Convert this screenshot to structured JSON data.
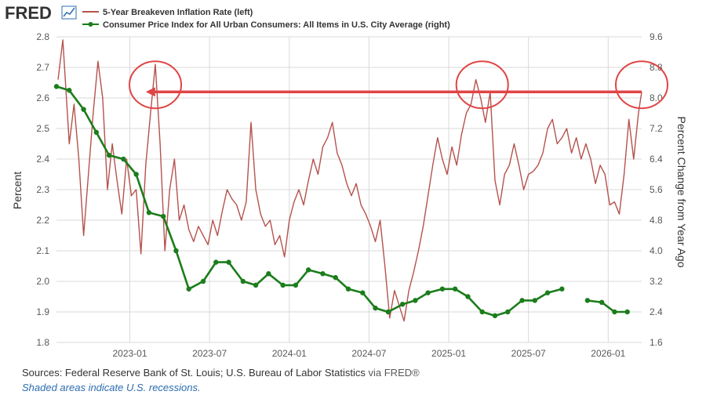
{
  "header": {
    "logo_text": "FRED",
    "logo_icon": "chart-line-icon",
    "accent": "#2c6cb0"
  },
  "footer": {
    "sources": "Sources: Federal Reserve Bank of St. Louis; U.S. Bureau of Labor Statistics",
    "via": "via FRED®",
    "recession_note": "Shaded areas indicate U.S. recessions."
  },
  "chart_data": {
    "type": "line",
    "title": "",
    "xlabel": "",
    "ylabel_left": "Percent",
    "ylabel_right": "Percent Change from Year Ago",
    "x_ticks": [
      "2023-01",
      "2023-07",
      "2024-01",
      "2024-07",
      "2025-01",
      "2025-07",
      "2026-01"
    ],
    "y_left_ticks": [
      "1.8",
      "1.9",
      "2.0",
      "2.1",
      "2.2",
      "2.3",
      "2.4",
      "2.5",
      "2.6",
      "2.7",
      "2.8"
    ],
    "y_right_ticks": [
      "1.6",
      "2.4",
      "3.2",
      "4.0",
      "4.8",
      "5.6",
      "6.4",
      "7.2",
      "8.0",
      "8.8",
      "9.6"
    ],
    "ylim_left": [
      1.8,
      2.8
    ],
    "ylim_right": [
      1.6,
      9.6
    ],
    "xlim": [
      2022.54,
      2026.21
    ],
    "grid": true,
    "legend_position": "top-left",
    "series": [
      {
        "name": "5-Year Breakeven Inflation Rate (left)",
        "axis": "left",
        "color": "#b5524d",
        "points": [
          [
            2022.55,
            2.66
          ],
          [
            2022.58,
            2.79
          ],
          [
            2022.62,
            2.45
          ],
          [
            2022.65,
            2.58
          ],
          [
            2022.68,
            2.4
          ],
          [
            2022.71,
            2.15
          ],
          [
            2022.74,
            2.35
          ],
          [
            2022.77,
            2.55
          ],
          [
            2022.8,
            2.72
          ],
          [
            2022.83,
            2.6
          ],
          [
            2022.86,
            2.3
          ],
          [
            2022.89,
            2.45
          ],
          [
            2022.92,
            2.33
          ],
          [
            2022.95,
            2.22
          ],
          [
            2022.98,
            2.4
          ],
          [
            2023.01,
            2.28
          ],
          [
            2023.04,
            2.3
          ],
          [
            2023.07,
            2.09
          ],
          [
            2023.1,
            2.38
          ],
          [
            2023.13,
            2.55
          ],
          [
            2023.16,
            2.71
          ],
          [
            2023.19,
            2.45
          ],
          [
            2023.22,
            2.1
          ],
          [
            2023.25,
            2.3
          ],
          [
            2023.28,
            2.4
          ],
          [
            2023.31,
            2.2
          ],
          [
            2023.34,
            2.25
          ],
          [
            2023.37,
            2.17
          ],
          [
            2023.4,
            2.13
          ],
          [
            2023.43,
            2.18
          ],
          [
            2023.46,
            2.15
          ],
          [
            2023.49,
            2.12
          ],
          [
            2023.52,
            2.2
          ],
          [
            2023.55,
            2.15
          ],
          [
            2023.58,
            2.23
          ],
          [
            2023.61,
            2.3
          ],
          [
            2023.64,
            2.27
          ],
          [
            2023.67,
            2.25
          ],
          [
            2023.7,
            2.2
          ],
          [
            2023.73,
            2.26
          ],
          [
            2023.76,
            2.52
          ],
          [
            2023.79,
            2.3
          ],
          [
            2023.82,
            2.22
          ],
          [
            2023.85,
            2.18
          ],
          [
            2023.88,
            2.2
          ],
          [
            2023.91,
            2.12
          ],
          [
            2023.94,
            2.15
          ],
          [
            2023.97,
            2.08
          ],
          [
            2024.0,
            2.2
          ],
          [
            2024.03,
            2.26
          ],
          [
            2024.06,
            2.3
          ],
          [
            2024.09,
            2.25
          ],
          [
            2024.12,
            2.33
          ],
          [
            2024.15,
            2.4
          ],
          [
            2024.18,
            2.35
          ],
          [
            2024.21,
            2.44
          ],
          [
            2024.24,
            2.47
          ],
          [
            2024.27,
            2.52
          ],
          [
            2024.3,
            2.42
          ],
          [
            2024.33,
            2.38
          ],
          [
            2024.36,
            2.32
          ],
          [
            2024.39,
            2.28
          ],
          [
            2024.42,
            2.32
          ],
          [
            2024.45,
            2.25
          ],
          [
            2024.48,
            2.22
          ],
          [
            2024.51,
            2.18
          ],
          [
            2024.54,
            2.13
          ],
          [
            2024.57,
            2.2
          ],
          [
            2024.6,
            2.05
          ],
          [
            2024.63,
            1.88
          ],
          [
            2024.66,
            1.97
          ],
          [
            2024.69,
            1.92
          ],
          [
            2024.72,
            1.87
          ],
          [
            2024.75,
            1.97
          ],
          [
            2024.78,
            2.03
          ],
          [
            2024.81,
            2.1
          ],
          [
            2024.84,
            2.18
          ],
          [
            2024.87,
            2.28
          ],
          [
            2024.9,
            2.38
          ],
          [
            2024.93,
            2.47
          ],
          [
            2024.96,
            2.4
          ],
          [
            2024.99,
            2.35
          ],
          [
            2025.02,
            2.44
          ],
          [
            2025.05,
            2.38
          ],
          [
            2025.08,
            2.48
          ],
          [
            2025.11,
            2.55
          ],
          [
            2025.14,
            2.58
          ],
          [
            2025.17,
            2.66
          ],
          [
            2025.2,
            2.6
          ],
          [
            2025.23,
            2.52
          ],
          [
            2025.26,
            2.62
          ],
          [
            2025.29,
            2.33
          ],
          [
            2025.32,
            2.25
          ],
          [
            2025.35,
            2.35
          ],
          [
            2025.38,
            2.38
          ],
          [
            2025.41,
            2.45
          ],
          [
            2025.44,
            2.38
          ],
          [
            2025.47,
            2.3
          ],
          [
            2025.5,
            2.35
          ],
          [
            2025.53,
            2.36
          ],
          [
            2025.56,
            2.38
          ],
          [
            2025.59,
            2.42
          ],
          [
            2025.62,
            2.5
          ],
          [
            2025.65,
            2.53
          ],
          [
            2025.68,
            2.45
          ],
          [
            2025.71,
            2.47
          ],
          [
            2025.74,
            2.5
          ],
          [
            2025.77,
            2.42
          ],
          [
            2025.8,
            2.47
          ],
          [
            2025.83,
            2.4
          ],
          [
            2025.86,
            2.45
          ],
          [
            2025.89,
            2.4
          ],
          [
            2025.92,
            2.32
          ],
          [
            2025.95,
            2.38
          ],
          [
            2025.98,
            2.35
          ],
          [
            2026.01,
            2.25
          ],
          [
            2026.04,
            2.26
          ],
          [
            2026.07,
            2.22
          ],
          [
            2026.1,
            2.35
          ],
          [
            2026.13,
            2.53
          ],
          [
            2026.16,
            2.4
          ],
          [
            2026.19,
            2.55
          ],
          [
            2026.21,
            2.62
          ]
        ]
      },
      {
        "name": "Consumer Price Index for All Urban Consumers: All Items in U.S. City Average (right)",
        "axis": "right",
        "color": "#1b7d1b",
        "points": [
          [
            2022.54,
            8.3
          ],
          [
            2022.62,
            8.2
          ],
          [
            2022.71,
            7.7
          ],
          [
            2022.79,
            7.1
          ],
          [
            2022.87,
            6.5
          ],
          [
            2022.96,
            6.4
          ],
          [
            2023.04,
            6.0
          ],
          [
            2023.12,
            5.0
          ],
          [
            2023.21,
            4.9
          ],
          [
            2023.29,
            4.0
          ],
          [
            2023.37,
            3.0
          ],
          [
            2023.46,
            3.2
          ],
          [
            2023.54,
            3.7
          ],
          [
            2023.62,
            3.7
          ],
          [
            2023.71,
            3.2
          ],
          [
            2023.79,
            3.1
          ],
          [
            2023.87,
            3.4
          ],
          [
            2023.96,
            3.1
          ],
          [
            2024.04,
            3.1
          ],
          [
            2024.12,
            3.5
          ],
          [
            2024.21,
            3.4
          ],
          [
            2024.29,
            3.3
          ],
          [
            2024.37,
            3.0
          ],
          [
            2024.46,
            2.9
          ],
          [
            2024.54,
            2.5
          ],
          [
            2024.62,
            2.4
          ],
          [
            2024.71,
            2.6
          ],
          [
            2024.79,
            2.7
          ],
          [
            2024.87,
            2.9
          ],
          [
            2024.96,
            3.0
          ],
          [
            2025.04,
            3.0
          ],
          [
            2025.12,
            2.8
          ],
          [
            2025.21,
            2.4
          ],
          [
            2025.29,
            2.3
          ],
          [
            2025.37,
            2.4
          ],
          [
            2025.46,
            2.7
          ],
          [
            2025.54,
            2.7
          ],
          [
            2025.62,
            2.9
          ],
          [
            2025.71,
            3.0
          ],
          null,
          [
            2025.87,
            2.7
          ],
          [
            2025.96,
            2.65
          ],
          [
            2026.04,
            2.4
          ],
          [
            2026.12,
            2.4
          ]
        ]
      }
    ],
    "annotations": {
      "color": "#e04545",
      "target_level": 2.62,
      "arrow": {
        "from": 2026.21,
        "to": 2023.1
      },
      "circles_at": [
        2023.16,
        2025.21,
        2026.21
      ]
    }
  }
}
